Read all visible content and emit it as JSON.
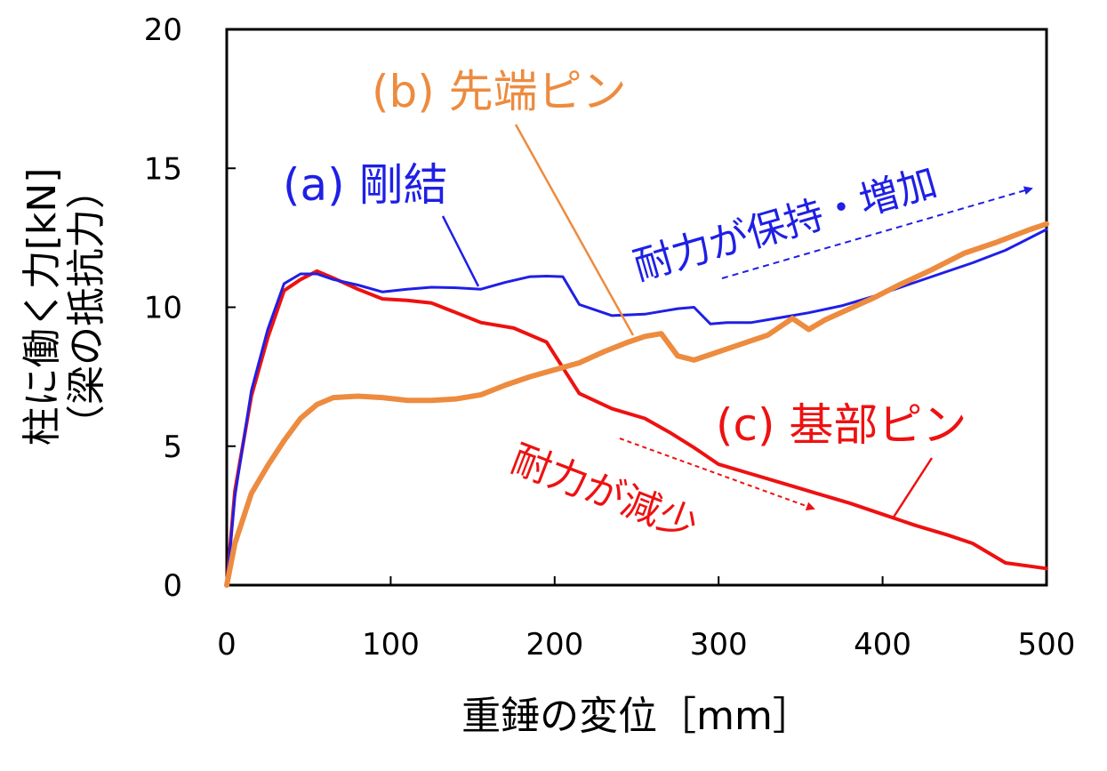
{
  "chart_data": {
    "type": "line",
    "xlabel": "重錘の変位［mm］",
    "ylabel_line1": "柱に働く力[kN]",
    "ylabel_line2": "（梁の抵抗力）",
    "xlim": [
      0,
      500
    ],
    "ylim": [
      0,
      20
    ],
    "xticks": [
      0,
      100,
      200,
      300,
      400,
      500
    ],
    "yticks": [
      0,
      5,
      10,
      15,
      20
    ],
    "grid": false,
    "series": [
      {
        "name": "(a) 剛結",
        "color": "#1f1fe6",
        "width": 3,
        "points": [
          [
            0,
            0
          ],
          [
            5,
            3.2
          ],
          [
            15,
            7.0
          ],
          [
            25,
            9.2
          ],
          [
            35,
            10.85
          ],
          [
            45,
            11.2
          ],
          [
            55,
            11.2
          ],
          [
            65,
            11.0
          ],
          [
            80,
            10.8
          ],
          [
            95,
            10.55
          ],
          [
            110,
            10.65
          ],
          [
            125,
            10.72
          ],
          [
            140,
            10.7
          ],
          [
            155,
            10.65
          ],
          [
            170,
            10.9
          ],
          [
            185,
            11.1
          ],
          [
            195,
            11.12
          ],
          [
            205,
            11.1
          ],
          [
            215,
            10.1
          ],
          [
            235,
            9.7
          ],
          [
            255,
            9.75
          ],
          [
            265,
            9.85
          ],
          [
            275,
            9.95
          ],
          [
            285,
            10.0
          ],
          [
            295,
            9.4
          ],
          [
            305,
            9.45
          ],
          [
            320,
            9.45
          ],
          [
            335,
            9.6
          ],
          [
            355,
            9.8
          ],
          [
            375,
            10.05
          ],
          [
            395,
            10.4
          ],
          [
            415,
            10.8
          ],
          [
            435,
            11.2
          ],
          [
            455,
            11.6
          ],
          [
            475,
            12.05
          ],
          [
            500,
            12.8
          ]
        ]
      },
      {
        "name": "(b) 先端ピン",
        "color": "#ed8b3f",
        "width": 6,
        "points": [
          [
            0,
            0
          ],
          [
            5,
            1.5
          ],
          [
            15,
            3.3
          ],
          [
            25,
            4.3
          ],
          [
            35,
            5.2
          ],
          [
            45,
            6.0
          ],
          [
            55,
            6.5
          ],
          [
            65,
            6.75
          ],
          [
            80,
            6.8
          ],
          [
            95,
            6.75
          ],
          [
            110,
            6.65
          ],
          [
            125,
            6.65
          ],
          [
            140,
            6.7
          ],
          [
            155,
            6.85
          ],
          [
            170,
            7.2
          ],
          [
            185,
            7.5
          ],
          [
            200,
            7.75
          ],
          [
            215,
            8.0
          ],
          [
            230,
            8.4
          ],
          [
            245,
            8.75
          ],
          [
            255,
            8.95
          ],
          [
            265,
            9.05
          ],
          [
            275,
            8.25
          ],
          [
            285,
            8.1
          ],
          [
            295,
            8.3
          ],
          [
            310,
            8.6
          ],
          [
            330,
            9.0
          ],
          [
            345,
            9.6
          ],
          [
            355,
            9.2
          ],
          [
            365,
            9.55
          ],
          [
            380,
            9.95
          ],
          [
            395,
            10.35
          ],
          [
            410,
            10.8
          ],
          [
            430,
            11.35
          ],
          [
            450,
            11.95
          ],
          [
            470,
            12.35
          ],
          [
            490,
            12.8
          ],
          [
            500,
            13.0
          ]
        ]
      },
      {
        "name": "(c) 基部ピン",
        "color": "#ee1111",
        "width": 4,
        "points": [
          [
            0,
            0
          ],
          [
            5,
            3.4
          ],
          [
            15,
            6.8
          ],
          [
            25,
            8.9
          ],
          [
            35,
            10.6
          ],
          [
            45,
            11.0
          ],
          [
            55,
            11.3
          ],
          [
            65,
            11.05
          ],
          [
            80,
            10.65
          ],
          [
            95,
            10.3
          ],
          [
            110,
            10.25
          ],
          [
            125,
            10.15
          ],
          [
            140,
            9.8
          ],
          [
            155,
            9.45
          ],
          [
            175,
            9.25
          ],
          [
            195,
            8.75
          ],
          [
            215,
            6.9
          ],
          [
            235,
            6.35
          ],
          [
            255,
            6.0
          ],
          [
            270,
            5.5
          ],
          [
            285,
            4.95
          ],
          [
            300,
            4.35
          ],
          [
            320,
            4.0
          ],
          [
            340,
            3.65
          ],
          [
            360,
            3.3
          ],
          [
            380,
            2.95
          ],
          [
            400,
            2.55
          ],
          [
            420,
            2.15
          ],
          [
            440,
            1.8
          ],
          [
            455,
            1.5
          ],
          [
            475,
            0.8
          ],
          [
            500,
            0.6
          ]
        ]
      }
    ],
    "annotations": {
      "label_a": "(a) 剛結",
      "label_b": "(b) 先端ピン",
      "label_c": "(c) 基部ピン",
      "note_increase": "耐力が保持・増加",
      "note_decrease": "耐力が減少"
    }
  }
}
